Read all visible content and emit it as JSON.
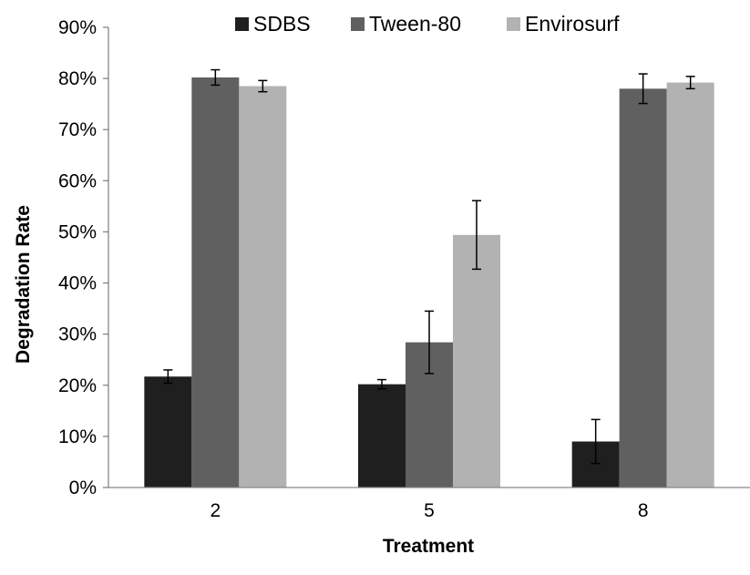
{
  "chart_data": {
    "type": "bar",
    "title": "",
    "xlabel": "Treatment",
    "ylabel": "Degradation Rate",
    "categories": [
      "2",
      "5",
      "8"
    ],
    "ylim": [
      0,
      0.9
    ],
    "yticks": [
      0,
      0.1,
      0.2,
      0.3,
      0.4,
      0.5,
      0.6,
      0.7,
      0.8,
      0.9
    ],
    "ytick_labels": [
      "0%",
      "10%",
      "20%",
      "30%",
      "40%",
      "50%",
      "60%",
      "70%",
      "80%",
      "90%"
    ],
    "grid": false,
    "legend_position": "top",
    "series": [
      {
        "name": "SDBS",
        "color": "#1f1f1f",
        "values": [
          0.217,
          0.202,
          0.09
        ],
        "errors": [
          0.013,
          0.009,
          0.043
        ]
      },
      {
        "name": "Tween-80",
        "color": "#606060",
        "values": [
          0.802,
          0.284,
          0.78
        ],
        "errors": [
          0.015,
          0.061,
          0.029
        ]
      },
      {
        "name": "Envirosurf",
        "color": "#b2b2b2",
        "values": [
          0.785,
          0.494,
          0.792
        ],
        "errors": [
          0.011,
          0.067,
          0.012
        ]
      }
    ]
  }
}
